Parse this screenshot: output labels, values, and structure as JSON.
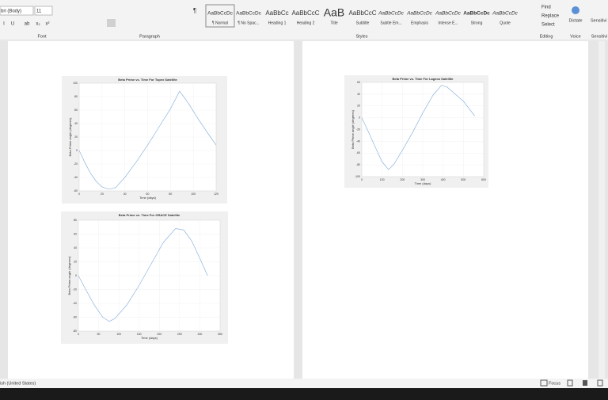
{
  "ribbon": {
    "font": {
      "name": "bri (Body)",
      "size": "11",
      "buttons": [
        "I",
        "U",
        "ab",
        "x₂",
        "x²"
      ]
    },
    "paragraph_mark": "¶",
    "styles": [
      {
        "sample": "AaBbCcDc",
        "name": "¶ Normal"
      },
      {
        "sample": "AaBbCcDc",
        "name": "¶ No Spac..."
      },
      {
        "sample": "AaBbCc",
        "name": "Heading 1"
      },
      {
        "sample": "AaBbCcC",
        "name": "Heading 2"
      },
      {
        "sample": "AaB",
        "name": "Title"
      },
      {
        "sample": "AaBbCcC",
        "name": "Subtitle"
      },
      {
        "sample": "AaBbCcDc",
        "name": "Subtle Em..."
      },
      {
        "sample": "AaBbCcDc",
        "name": "Emphasis"
      },
      {
        "sample": "AaBbCcDc",
        "name": "Intense E..."
      },
      {
        "sample": "AaBbCcDc",
        "name": "Strong"
      },
      {
        "sample": "AaBbCcDc",
        "name": "Quote"
      }
    ],
    "editing": [
      "Find",
      "Replace",
      "Select"
    ],
    "voice": "Dictate",
    "sensitivity": "Sensitivi",
    "groups": [
      "Font",
      "Paragraph",
      "Styles",
      "Editing",
      "Voice",
      "Sensitivi"
    ]
  },
  "document": {
    "charts": [
      {
        "title": "Beta Prime vs. Time For Topex Satellite",
        "x_label": "Time (days)",
        "y_label": "Beta Prime angle (degrees)",
        "xlim": [
          0,
          120
        ],
        "xticks": [
          0,
          20,
          40,
          60,
          80,
          100,
          120
        ],
        "ylim": [
          -60,
          100
        ],
        "yticks": [
          -60,
          -40,
          -20,
          0,
          20,
          40,
          60,
          80,
          100
        ],
        "color": "#8fb4dc",
        "x": [
          0,
          5,
          10,
          15,
          20,
          25,
          28,
          32,
          40,
          50,
          60,
          70,
          80,
          88,
          95,
          105,
          115,
          120
        ],
        "values": [
          0,
          -18,
          -34,
          -46,
          -54,
          -57,
          -57,
          -55,
          -40,
          -17,
          8,
          35,
          62,
          88,
          72,
          45,
          20,
          8
        ]
      },
      {
        "title": "Beta Prime vs. Time For Lageos Satellite",
        "x_label": "Time (days)",
        "y_label": "Beta Prime angle (degrees)",
        "xlim": [
          0,
          600
        ],
        "xticks": [
          0,
          100,
          200,
          300,
          400,
          500,
          600
        ],
        "ylim": [
          -100,
          60
        ],
        "yticks": [
          -100,
          -80,
          -60,
          -40,
          -20,
          0,
          20,
          40,
          60
        ],
        "color": "#8fb4dc",
        "x": [
          0,
          30,
          60,
          100,
          132,
          160,
          200,
          250,
          300,
          350,
          392,
          420,
          460,
          500,
          556
        ],
        "values": [
          0,
          -22,
          -45,
          -75,
          -88,
          -78,
          -55,
          -25,
          8,
          38,
          55,
          52,
          40,
          28,
          3
        ]
      },
      {
        "title": "Beta Prime vs. Time For GRACE Satellite",
        "x_label": "Time (days)",
        "y_label": "Beta Prime angle (degrees)",
        "xlim": [
          0,
          350
        ],
        "xticks": [
          0,
          50,
          100,
          150,
          200,
          250,
          300,
          350
        ],
        "ylim": [
          -80,
          80
        ],
        "yticks": [
          -80,
          -60,
          -40,
          -20,
          0,
          20,
          40,
          60,
          80
        ],
        "color": "#8fb4dc",
        "x": [
          0,
          20,
          40,
          60,
          76,
          90,
          120,
          150,
          180,
          210,
          240,
          260,
          280,
          300,
          319
        ],
        "values": [
          0,
          -22,
          -43,
          -60,
          -66,
          -62,
          -42,
          -14,
          17,
          48,
          68,
          66,
          50,
          25,
          0
        ]
      }
    ]
  },
  "status_bar": {
    "language": "ish (United States)",
    "focus": "Focus"
  }
}
